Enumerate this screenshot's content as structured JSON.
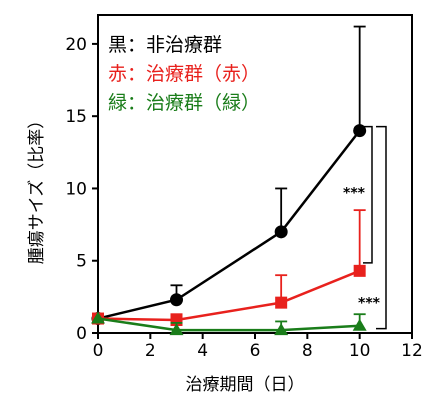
{
  "chart_data": {
    "type": "line",
    "xlabel": "治療期間（日）",
    "ylabel": "腫瘍サイズ（比率）",
    "xlim": [
      0,
      12
    ],
    "ylim": [
      0,
      22
    ],
    "xticks": [
      0,
      2,
      4,
      6,
      8,
      10,
      12
    ],
    "yticks": [
      0,
      5,
      10,
      15,
      20
    ],
    "grid": false,
    "legend_position": "top-left",
    "series": [
      {
        "name": "黒：非治療群",
        "label": "黒：非治療群",
        "color": "#000000",
        "marker": "circle",
        "x": [
          0,
          3,
          7,
          10
        ],
        "y": [
          1.0,
          2.3,
          7.0,
          14.0
        ],
        "err": [
          0,
          1.0,
          3.0,
          7.2
        ]
      },
      {
        "name": "赤：治療群（赤）",
        "label": "赤：治療群（赤）",
        "color": "#e8211d",
        "marker": "square",
        "x": [
          0,
          3,
          7,
          10
        ],
        "y": [
          1.0,
          0.9,
          2.1,
          4.3
        ],
        "err": [
          0,
          0.4,
          1.9,
          4.2
        ]
      },
      {
        "name": "緑：治療群（緑）",
        "label": "緑：治療群（緑）",
        "color": "#1a7d1a",
        "marker": "triangle",
        "x": [
          0,
          3,
          7,
          10
        ],
        "y": [
          1.0,
          0.2,
          0.2,
          0.5
        ],
        "err": [
          0,
          0.5,
          0.6,
          0.8
        ]
      }
    ],
    "annotations": [
      {
        "text": "***",
        "between": [
          "黒：非治療群",
          "赤：治療群（赤）"
        ]
      },
      {
        "text": "***",
        "between": [
          "黒：非治療群",
          "緑：治療群（緑）"
        ]
      }
    ]
  }
}
